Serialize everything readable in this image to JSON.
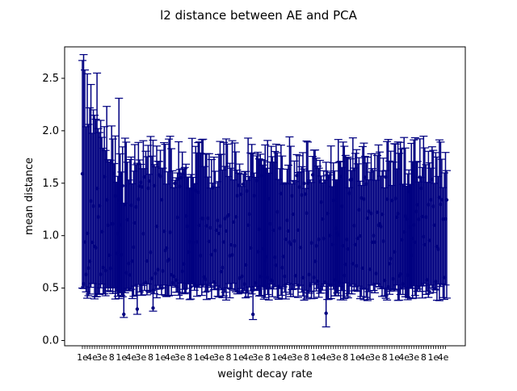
{
  "figure": {
    "title": "l2 distance between AE and PCA"
  },
  "chart_data": {
    "type": "errorbar",
    "title": "l2 distance between AE and PCA",
    "xlabel": "weight decay rate",
    "ylabel": "mean distance",
    "ylim": [
      -0.05,
      2.8
    ],
    "yticks": [
      0.0,
      0.5,
      1.0,
      1.5,
      2.0,
      2.5
    ],
    "ytick_labels": [
      "0.0",
      "0.5",
      "1.0",
      "1.5",
      "2.0",
      "2.5"
    ],
    "xtick_labels_visible_fragments": [
      "1e",
      "4e",
      "3e",
      "8"
    ],
    "x_note": "Dense categorical axis (~300 weight decay rates); tick labels overlap and are illegible",
    "series": [
      {
        "color": "#000080",
        "marker": "point",
        "error_bar_caps": true,
        "approx_point_count": 300,
        "highlighted_points": [
          {
            "x_index": 0,
            "y": 1.59,
            "lower": 0.5,
            "upper": 2.67
          },
          {
            "x_index": 12,
            "y": 1.45,
            "lower": 0.42,
            "upper": 2.55
          },
          {
            "x_index": 30,
            "y": 1.34,
            "lower": 0.4,
            "upper": 2.31
          },
          {
            "x_index": 34,
            "y": 0.25,
            "lower": 0.22,
            "upper": 1.31
          },
          {
            "x_index": 45,
            "y": 0.3,
            "lower": 0.25,
            "upper": 1.69
          },
          {
            "x_index": 58,
            "y": 0.31,
            "lower": 0.28,
            "upper": 1.91
          },
          {
            "x_index": 140,
            "y": 0.25,
            "lower": 0.2,
            "upper": 1.78
          },
          {
            "x_index": 200,
            "y": 0.26,
            "lower": 0.13,
            "upper": 1.7
          },
          {
            "x_index": 300,
            "y": 1.03,
            "lower": 0.42,
            "upper": 1.63
          }
        ],
        "typical_mean_range": [
          0.5,
          1.6
        ],
        "typical_lower_range": [
          0.38,
          0.55
        ],
        "typical_upper_range": [
          1.45,
          1.95
        ]
      }
    ],
    "series_color": "#000080",
    "grid": false,
    "legend": "none"
  }
}
